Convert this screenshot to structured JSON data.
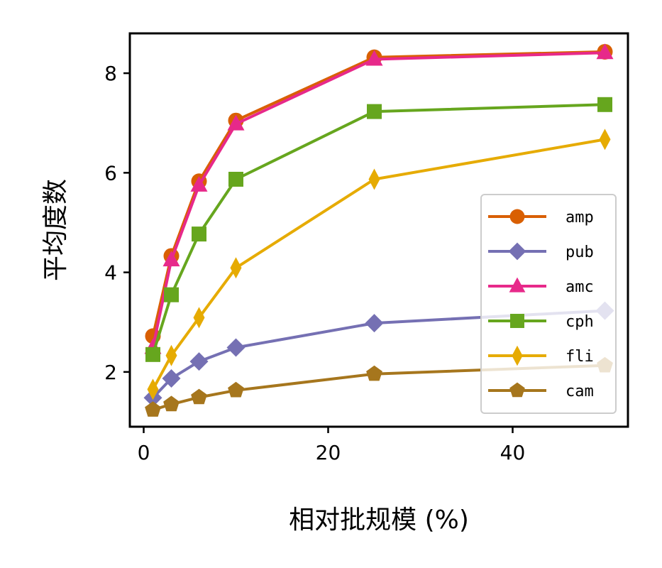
{
  "chart_data": {
    "type": "line",
    "xlabel": "相对批规模 (%)",
    "ylabel": "平均度数",
    "xlim": [
      -1.5,
      52.5
    ],
    "ylim": [
      0.9,
      8.8
    ],
    "xticks": [
      0,
      20,
      40
    ],
    "yticks": [
      2,
      4,
      6,
      8
    ],
    "grid": false,
    "legend_position": "lower-right",
    "x": [
      1,
      3,
      6,
      10,
      25,
      50
    ],
    "series": [
      {
        "name": "amp",
        "values": [
          2.72,
          4.33,
          5.83,
          7.05,
          8.32,
          8.43
        ],
        "color": "#d95f02",
        "marker": "circle"
      },
      {
        "name": "pub",
        "values": [
          1.48,
          1.87,
          2.21,
          2.49,
          2.98,
          3.23
        ],
        "color": "#7570b3",
        "marker": "diamond"
      },
      {
        "name": "amc",
        "values": [
          2.49,
          4.25,
          5.75,
          6.98,
          8.28,
          8.41
        ],
        "color": "#e7298a",
        "marker": "triangle"
      },
      {
        "name": "cph",
        "values": [
          2.35,
          3.55,
          4.77,
          5.87,
          7.23,
          7.37
        ],
        "color": "#66a61e",
        "marker": "square"
      },
      {
        "name": "fli",
        "values": [
          1.65,
          2.33,
          3.09,
          4.09,
          5.87,
          6.67
        ],
        "color": "#e6ab02",
        "marker": "thin-diamond"
      },
      {
        "name": "cam",
        "values": [
          1.24,
          1.35,
          1.49,
          1.63,
          1.96,
          2.13
        ],
        "color": "#a6761d",
        "marker": "pentagon"
      }
    ]
  }
}
